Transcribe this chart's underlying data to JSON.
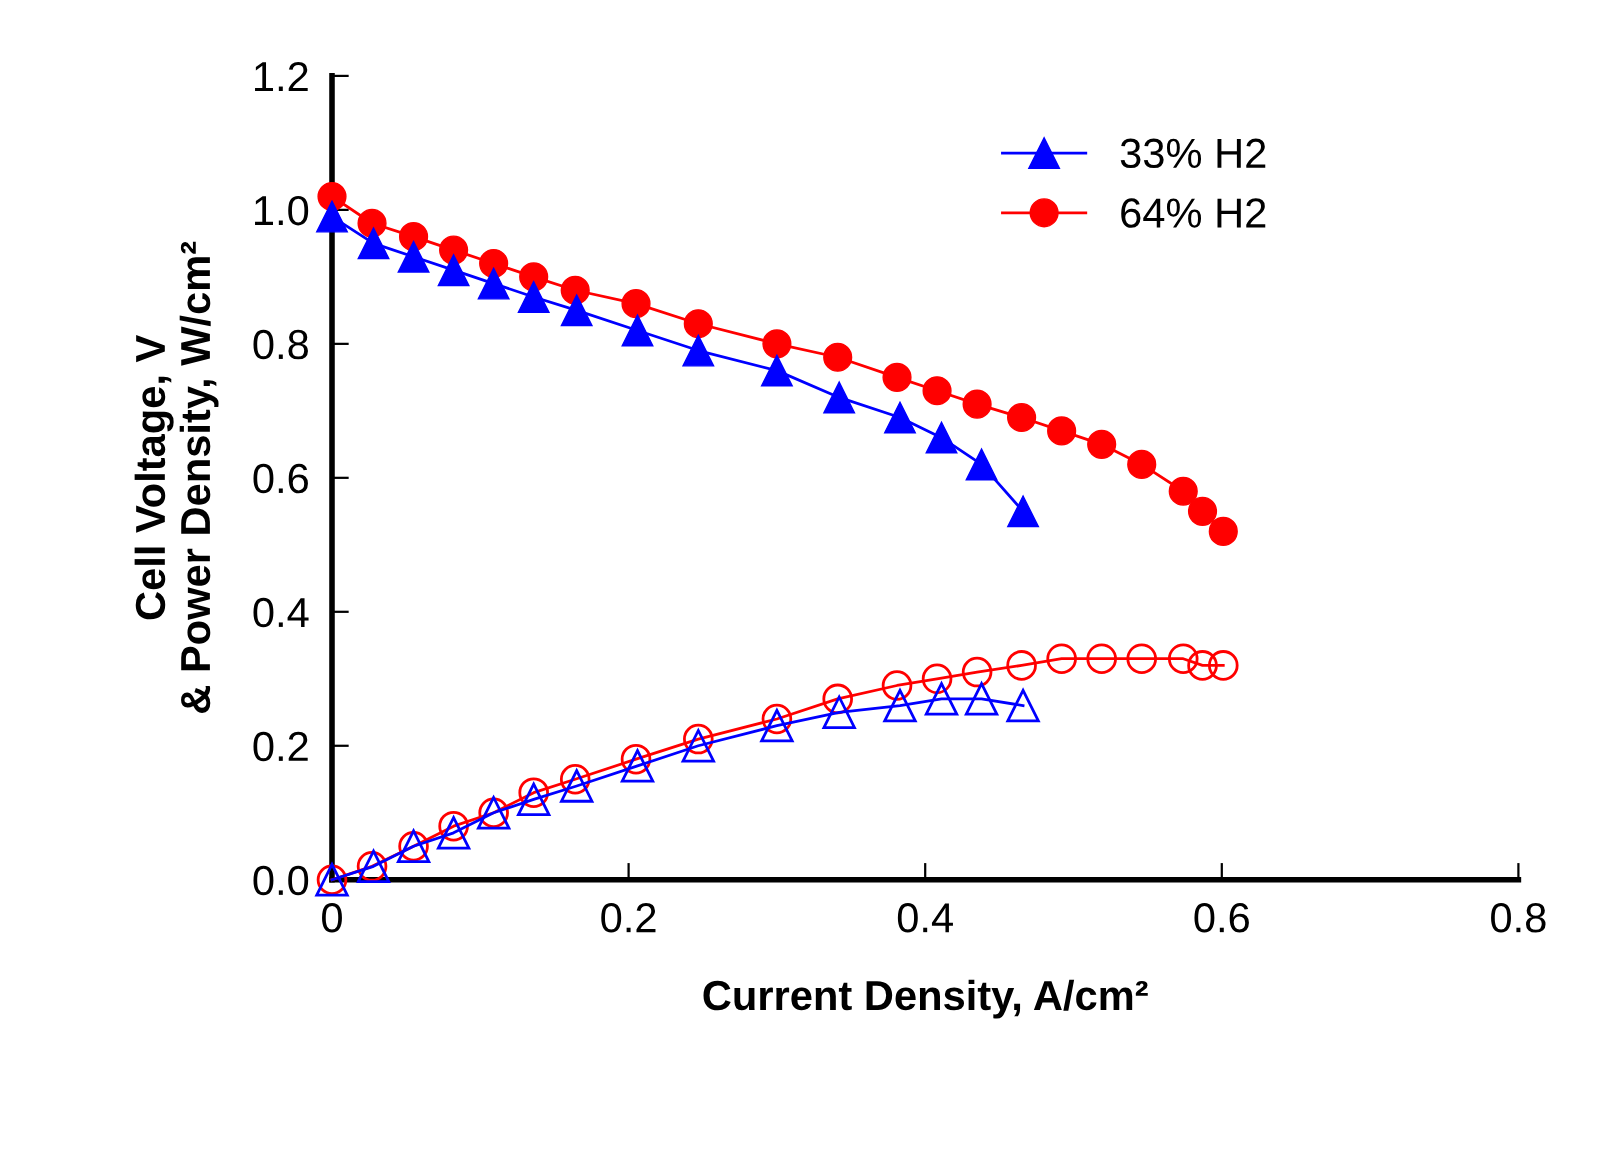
{
  "chart_data": {
    "type": "line",
    "xlabel": "Current Density, A/cm²",
    "ylabel": "Cell Voltage, V\n& Power Density, W/cm²",
    "xlim": [
      0,
      0.8
    ],
    "xticks": [
      0,
      0.2,
      0.4,
      0.6,
      0.8
    ],
    "ylim": [
      0,
      1.2
    ],
    "yticks": [
      {
        "value": 0,
        "label": "0.0"
      },
      0.2,
      0.4,
      0.6,
      0.8,
      {
        "value": 1,
        "label": "1.0"
      },
      1.2
    ],
    "grid": false,
    "legend": "top right",
    "line_style": "solid",
    "series": [
      {
        "name": "33% H2",
        "color": "#0000ff",
        "marker": "triangle",
        "x": [
          0,
          0.028,
          0.055,
          0.082,
          0.109,
          0.136,
          0.165,
          0.206,
          0.247,
          0.3,
          0.342,
          0.383,
          0.411,
          0.438,
          0.466
        ],
        "values": [
          0.99,
          0.95,
          0.93,
          0.91,
          0.89,
          0.87,
          0.85,
          0.82,
          0.79,
          0.76,
          0.72,
          0.69,
          0.66,
          0.62,
          0.55
        ]
      },
      {
        "name": "64% H2",
        "color": "#ff0000",
        "marker": "circle",
        "x": [
          0,
          0.027,
          0.055,
          0.082,
          0.109,
          0.136,
          0.164,
          0.205,
          0.247,
          0.3,
          0.341,
          0.381,
          0.408,
          0.435,
          0.465,
          0.492,
          0.519,
          0.546,
          0.574,
          0.587,
          0.601
        ],
        "values": [
          1.02,
          0.98,
          0.96,
          0.94,
          0.92,
          0.9,
          0.88,
          0.86,
          0.83,
          0.8,
          0.78,
          0.75,
          0.73,
          0.71,
          0.69,
          0.67,
          0.65,
          0.62,
          0.58,
          0.55,
          0.52
        ]
      },
      {
        "color": "#0000ff",
        "marker": "triangle",
        "x": [
          0,
          0.028,
          0.055,
          0.082,
          0.109,
          0.136,
          0.165,
          0.206,
          0.247,
          0.3,
          0.342,
          0.383,
          0.411,
          0.438,
          0.466
        ],
        "values": [
          0,
          0.02,
          0.05,
          0.07,
          0.1,
          0.12,
          0.14,
          0.17,
          0.2,
          0.23,
          0.25,
          0.26,
          0.27,
          0.27,
          0.26
        ]
      },
      {
        "color": "#ff0000",
        "marker": "circle",
        "x": [
          0,
          0.027,
          0.055,
          0.082,
          0.109,
          0.136,
          0.164,
          0.205,
          0.247,
          0.3,
          0.341,
          0.381,
          0.408,
          0.435,
          0.465,
          0.492,
          0.519,
          0.546,
          0.574,
          0.587,
          0.601
        ],
        "values": [
          0,
          0.02,
          0.05,
          0.08,
          0.1,
          0.13,
          0.15,
          0.18,
          0.21,
          0.24,
          0.27,
          0.29,
          0.3,
          0.31,
          0.32,
          0.33,
          0.33,
          0.33,
          0.33,
          0.32,
          0.32
        ]
      }
    ]
  }
}
